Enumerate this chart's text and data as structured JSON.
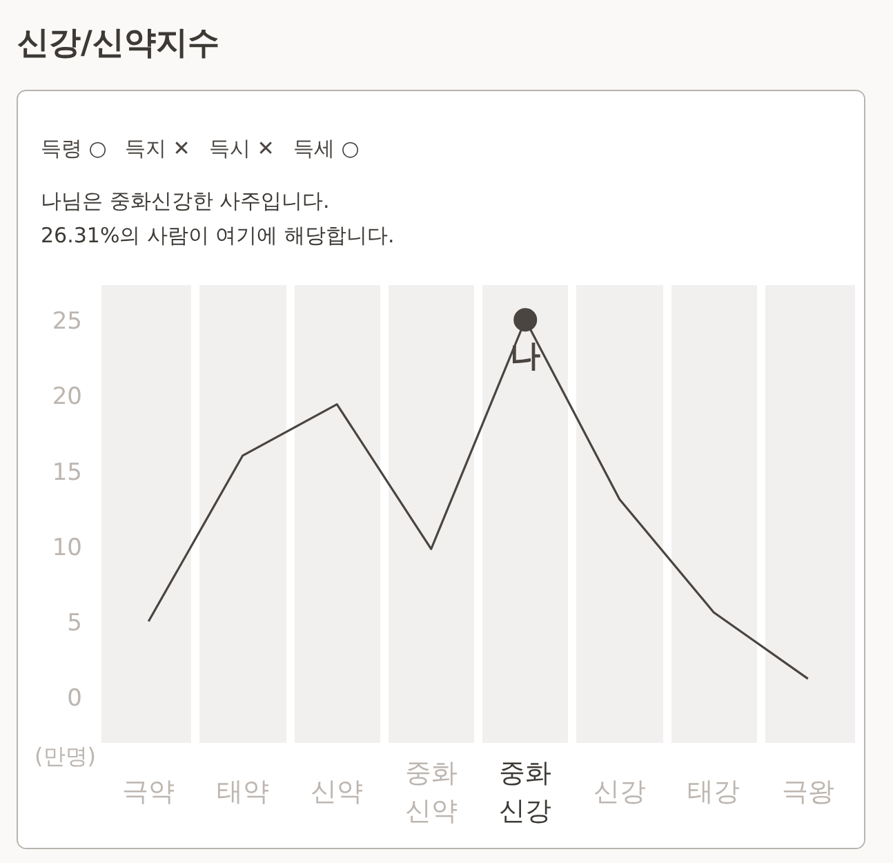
{
  "chart_data": {
    "type": "line",
    "title": "신강/신약지수",
    "ylabel": "(만명)",
    "annotations": [
      "득령 ○",
      "득지 ✕",
      "득시 ✕",
      "득세 ○",
      "나님은 중화신강한 사주입니다.",
      "26.31%의 사람이 여기에 해당합니다.",
      {
        "text": "나",
        "x": "중화신강",
        "y": 25
      }
    ],
    "categories": [
      "극약",
      "태약",
      "신약",
      "중화신약",
      "중화신강",
      "신강",
      "태강",
      "극왕"
    ],
    "series": [
      {
        "color": "#4a4541",
        "values": [
          5,
          16,
          19.4,
          9.8,
          25,
          13.1,
          5.6,
          1.2
        ]
      }
    ],
    "ylim": [
      -3.1,
      27.3
    ],
    "yticks": [
      0,
      5,
      10,
      15,
      20,
      25
    ],
    "grid": "x"
  }
}
